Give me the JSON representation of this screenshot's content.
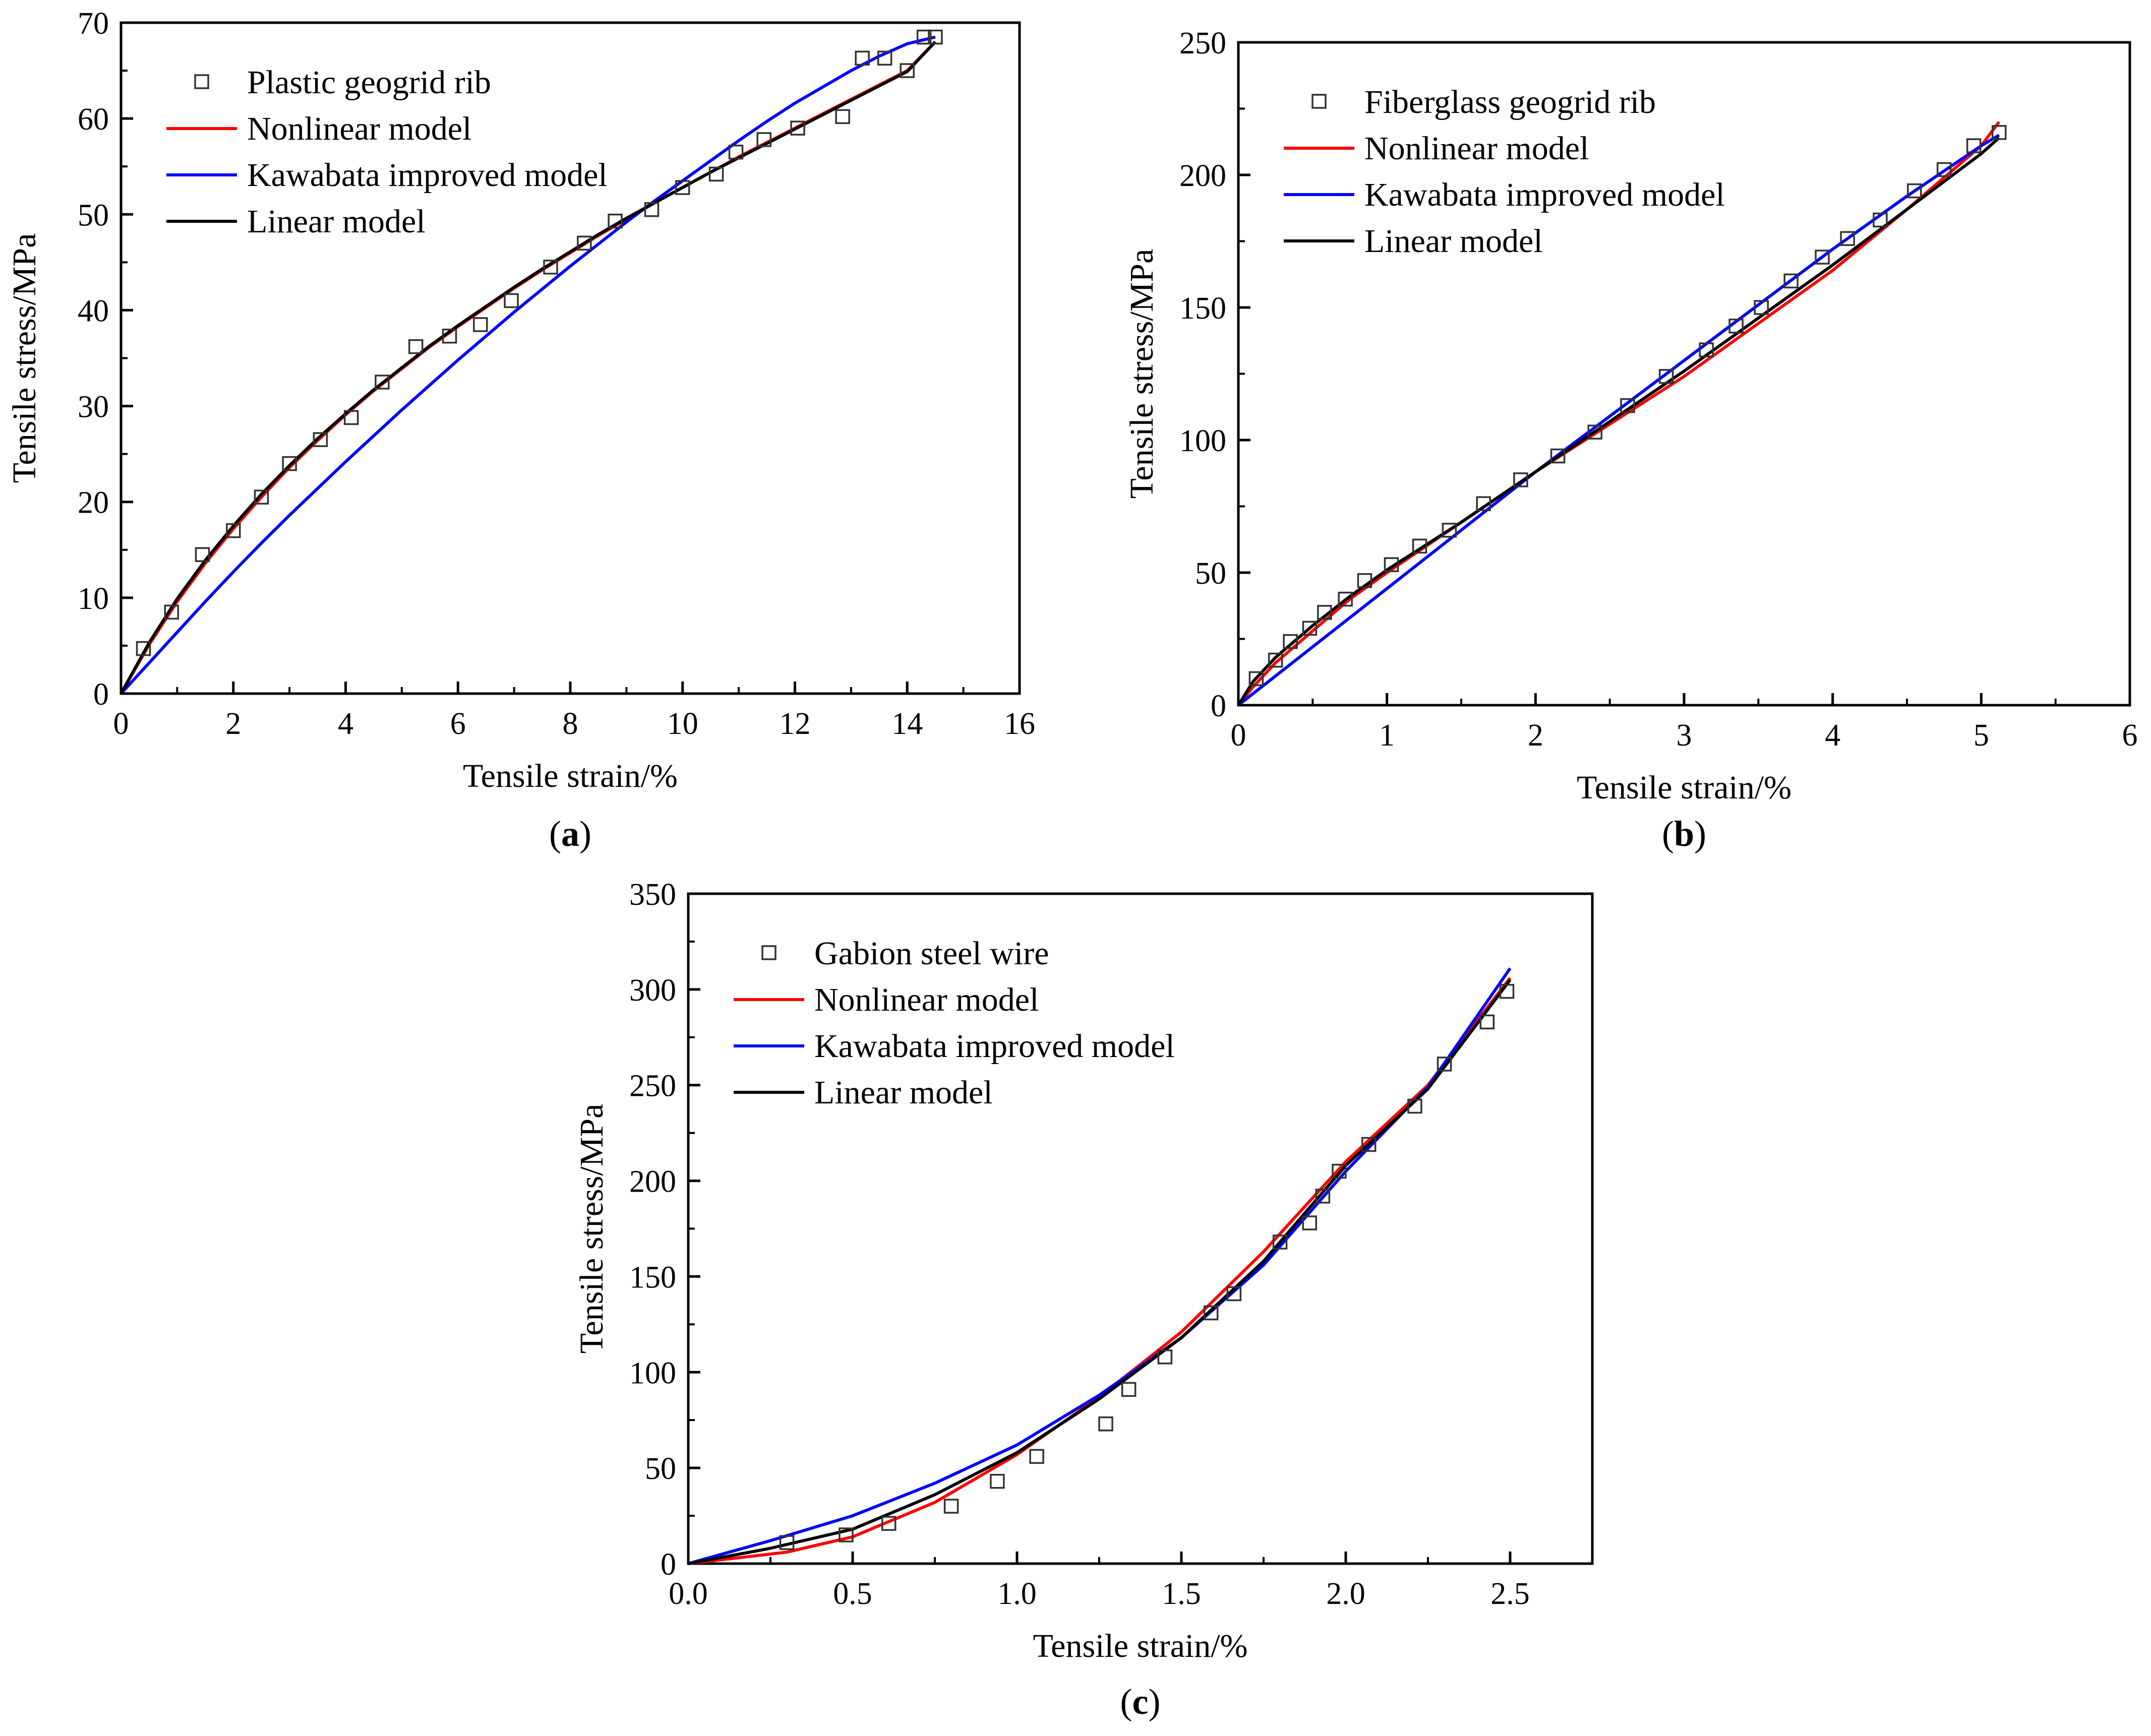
{
  "chart_data": [
    {
      "id": "a",
      "type": "scatter",
      "caption_letter": "a",
      "xlabel": "Tensile strain/%",
      "ylabel": "Tensile stress/MPa",
      "xlim": [
        0,
        16
      ],
      "ylim": [
        0,
        70
      ],
      "xticks": [
        0,
        2,
        4,
        6,
        8,
        10,
        12,
        14,
        16
      ],
      "yticks": [
        0,
        10,
        20,
        30,
        40,
        50,
        60,
        70
      ],
      "legend_position": "top-left",
      "points": {
        "name": "Plastic geogrid rib",
        "x": [
          0.4,
          0.9,
          1.45,
          2.0,
          2.5,
          3.0,
          3.55,
          4.1,
          4.65,
          5.25,
          5.85,
          6.4,
          6.95,
          7.65,
          8.25,
          8.8,
          9.45,
          10.0,
          10.6,
          10.95,
          11.45,
          12.05,
          12.85,
          13.2,
          13.6,
          14.0,
          14.3,
          14.5
        ],
        "y": [
          4.7,
          8.5,
          14.5,
          17.0,
          20.5,
          24.0,
          26.5,
          28.8,
          32.5,
          36.2,
          37.3,
          38.5,
          41.0,
          44.5,
          47.0,
          49.3,
          50.5,
          52.8,
          54.2,
          56.5,
          57.8,
          59.0,
          60.2,
          66.3,
          66.3,
          65.0,
          68.5,
          68.5
        ]
      },
      "series": [
        {
          "name": "Nonlinear model",
          "color": "#ff0000",
          "x": [
            0,
            0.5,
            1,
            1.5,
            2,
            2.5,
            3,
            3.5,
            4,
            4.5,
            5,
            5.5,
            6,
            6.5,
            7,
            7.5,
            8,
            8.5,
            9,
            9.5,
            10,
            10.5,
            11,
            11.5,
            12,
            12.5,
            13,
            13.5,
            14,
            14.5
          ],
          "y": [
            0,
            5.1,
            9.6,
            13.6,
            17.2,
            20.5,
            23.6,
            26.4,
            29.1,
            31.6,
            33.9,
            36.2,
            38.3,
            40.3,
            42.3,
            44.2,
            46.0,
            47.8,
            49.5,
            51.2,
            52.8,
            54.4,
            56.0,
            57.5,
            59.0,
            60.5,
            62.0,
            63.5,
            65.0,
            68.0
          ]
        },
        {
          "name": "Kawabata improved model",
          "color": "#0000ff",
          "x": [
            0,
            0.5,
            1,
            1.5,
            2,
            2.5,
            3,
            3.5,
            4,
            4.5,
            5,
            5.5,
            6,
            6.5,
            7,
            7.5,
            8,
            8.5,
            9,
            9.5,
            10,
            10.5,
            11,
            11.5,
            12,
            12.5,
            13,
            13.5,
            14,
            14.5
          ],
          "y": [
            0,
            3.2,
            6.4,
            9.6,
            12.7,
            15.7,
            18.6,
            21.4,
            24.2,
            26.9,
            29.6,
            32.2,
            34.8,
            37.3,
            39.8,
            42.2,
            44.6,
            46.9,
            49.2,
            51.4,
            53.5,
            55.6,
            57.7,
            59.7,
            61.6,
            63.3,
            65.0,
            66.5,
            67.8,
            68.5
          ]
        },
        {
          "name": "Linear model",
          "color": "#000000",
          "x": [
            0,
            0.5,
            1,
            1.5,
            2,
            2.5,
            3,
            3.5,
            4,
            4.5,
            5,
            5.5,
            6,
            6.5,
            7,
            7.5,
            8,
            8.5,
            9,
            9.5,
            10,
            10.5,
            11,
            11.5,
            12,
            12.5,
            13,
            13.5,
            14,
            14.5
          ],
          "y": [
            0,
            5.3,
            9.9,
            13.9,
            17.5,
            20.8,
            23.8,
            26.6,
            29.2,
            31.7,
            34.0,
            36.3,
            38.4,
            40.4,
            42.4,
            44.3,
            46.1,
            47.9,
            49.6,
            51.2,
            52.8,
            54.4,
            55.9,
            57.4,
            58.9,
            60.4,
            61.9,
            63.4,
            64.9,
            68.0
          ]
        }
      ]
    },
    {
      "id": "b",
      "type": "scatter",
      "caption_letter": "b",
      "xlabel": "Tensile strain/%",
      "ylabel": "Tensile stress/MPa",
      "xlim": [
        0,
        6
      ],
      "ylim": [
        0,
        250
      ],
      "xticks": [
        0,
        1,
        2,
        3,
        4,
        5,
        6
      ],
      "yticks": [
        0,
        50,
        100,
        150,
        200,
        250
      ],
      "legend_position": "top-left",
      "points": {
        "name": "Fiberglass geogrid rib",
        "x": [
          0.12,
          0.25,
          0.35,
          0.48,
          0.58,
          0.72,
          0.85,
          1.03,
          1.22,
          1.42,
          1.65,
          1.9,
          2.15,
          2.4,
          2.62,
          2.88,
          3.15,
          3.35,
          3.52,
          3.72,
          3.93,
          4.1,
          4.32,
          4.55,
          4.75,
          4.95,
          5.12
        ],
        "y": [
          10,
          17,
          24,
          29,
          35,
          40,
          47,
          53,
          60,
          66,
          76,
          85,
          94,
          103,
          113,
          124,
          134,
          143,
          150,
          160,
          169,
          176,
          183,
          194,
          202,
          211,
          216
        ]
      },
      "series": [
        {
          "name": "Nonlinear model",
          "color": "#ff0000",
          "x": [
            0,
            0.1,
            0.25,
            0.5,
            0.75,
            1.0,
            1.5,
            2.0,
            2.5,
            3.0,
            3.5,
            4.0,
            4.5,
            5.0,
            5.12
          ],
          "y": [
            0,
            7,
            16,
            28,
            40,
            50,
            69,
            88,
            106,
            124,
            144,
            164,
            187,
            211,
            220
          ]
        },
        {
          "name": "Kawabata improved model",
          "color": "#0000ff",
          "x": [
            0,
            0.5,
            1.0,
            1.5,
            2.0,
            2.5,
            3.0,
            3.5,
            4.0,
            4.5,
            5.0,
            5.12
          ],
          "y": [
            0,
            22,
            44,
            66,
            88,
            109,
            130,
            151,
            172,
            192,
            211,
            215
          ]
        },
        {
          "name": "Linear model",
          "color": "#000000",
          "x": [
            0,
            0.1,
            0.25,
            0.5,
            0.75,
            1.0,
            1.5,
            2.0,
            2.5,
            3.0,
            3.5,
            4.0,
            4.5,
            5.0,
            5.12
          ],
          "y": [
            0,
            9,
            18,
            30,
            41,
            51,
            69,
            88,
            107,
            126,
            146,
            166,
            187,
            208,
            214
          ]
        }
      ]
    },
    {
      "id": "c",
      "type": "scatter",
      "caption_letter": "c",
      "xlabel": "Tensile strain/%",
      "ylabel": "Tensile stress/MPa",
      "xlim": [
        0,
        2.75
      ],
      "ylim": [
        0,
        350
      ],
      "xticks": [
        0,
        0.5,
        1.0,
        1.5,
        2.0,
        2.5
      ],
      "xtick_labels": [
        "0.0",
        "0.5",
        "1.0",
        "1.5",
        "2.0",
        "2.5"
      ],
      "yticks": [
        0,
        50,
        100,
        150,
        200,
        250,
        300,
        350
      ],
      "legend_position": "top-left",
      "points": {
        "name": "Gabion steel wire",
        "x": [
          0.3,
          0.48,
          0.61,
          0.8,
          0.94,
          1.06,
          1.27,
          1.34,
          1.45,
          1.59,
          1.66,
          1.8,
          1.89,
          1.93,
          1.98,
          2.07,
          2.21,
          2.3,
          2.43,
          2.49
        ],
        "y": [
          11,
          15,
          21,
          30,
          43,
          56,
          73,
          91,
          108,
          131,
          141,
          168,
          178,
          192,
          205,
          219,
          239,
          261,
          283,
          299
        ]
      },
      "series": [
        {
          "name": "Nonlinear model",
          "color": "#ff0000",
          "x": [
            0,
            0.3,
            0.5,
            0.75,
            1.0,
            1.25,
            1.5,
            1.75,
            2.0,
            2.25,
            2.5
          ],
          "y": [
            0,
            6,
            14,
            32,
            57,
            87,
            121,
            163,
            210,
            250,
            306
          ]
        },
        {
          "name": "Kawabata improved model",
          "color": "#0000ff",
          "x": [
            0,
            0.25,
            0.5,
            0.75,
            1.0,
            1.25,
            1.5,
            1.75,
            2.0,
            2.25,
            2.5
          ],
          "y": [
            0,
            12,
            25,
            42,
            62,
            88,
            118,
            156,
            205,
            249,
            311
          ]
        },
        {
          "name": "Linear model",
          "color": "#000000",
          "x": [
            0,
            0.25,
            0.5,
            0.75,
            1.0,
            1.25,
            1.5,
            1.75,
            2.0,
            2.25,
            2.5
          ],
          "y": [
            0,
            8,
            18,
            36,
            58,
            86,
            118,
            158,
            208,
            248,
            305
          ]
        }
      ]
    }
  ]
}
